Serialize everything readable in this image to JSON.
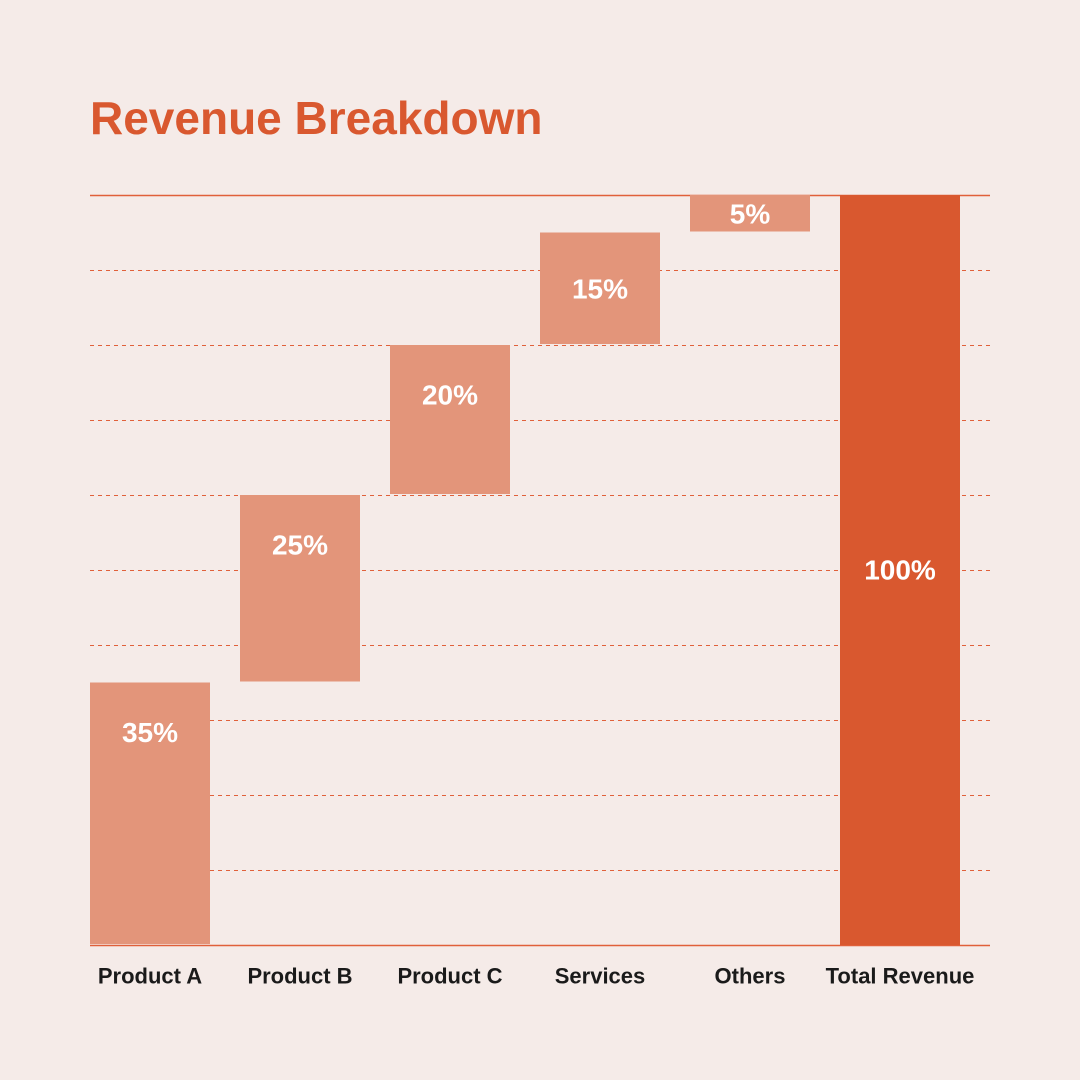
{
  "title": "Revenue Breakdown",
  "chart_data": {
    "type": "waterfall",
    "title": "Revenue Breakdown",
    "categories": [
      "Product A",
      "Product B",
      "Product C",
      "Services",
      "Others",
      "Total Revenue"
    ],
    "values": [
      35,
      25,
      20,
      15,
      5,
      100
    ],
    "labels": [
      "35%",
      "25%",
      "20%",
      "15%",
      "5%",
      "100%"
    ],
    "is_total": [
      false,
      false,
      false,
      false,
      false,
      true
    ],
    "ylim": [
      0,
      100
    ],
    "gridline_step": 10,
    "grid": true,
    "xlabel": "",
    "ylabel": ""
  },
  "colors": {
    "background": "#F5EBE8",
    "accent": "#D9582F",
    "step_bar": "#E3957A",
    "total_bar": "#D9582F",
    "gridline": "#E0603A",
    "label_text": "#FFFFFF",
    "category_text": "#1A1A1A"
  }
}
